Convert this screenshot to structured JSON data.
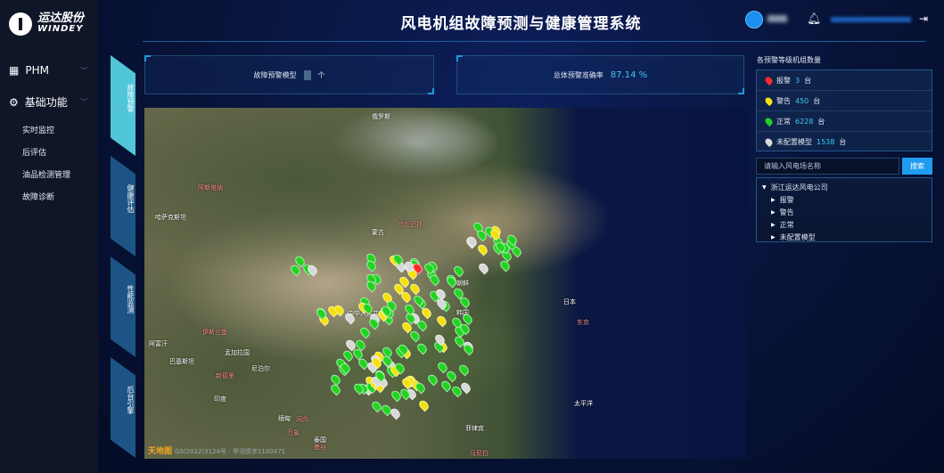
{
  "brand": {
    "name_cn": "运达股份",
    "name_en": "WINDEY"
  },
  "sidebar": {
    "menus": [
      {
        "label": "PHM",
        "icon": "grid-icon"
      },
      {
        "label": "基础功能",
        "icon": "gear-icon"
      }
    ],
    "items": [
      "实时监控",
      "后评估",
      "油品检测管理",
      "故障诊断"
    ]
  },
  "header": {
    "title": "风电机组故障预测与健康管理系统"
  },
  "tabs": [
    {
      "label": "故障预警",
      "active": true
    },
    {
      "label": "健康评估"
    },
    {
      "label": "性能监测"
    },
    {
      "label": "后台引擎"
    }
  ],
  "stats": {
    "model_label": "故障预警模型",
    "model_unit": "个",
    "accuracy_label": "总体预警准确率",
    "accuracy_value": "87.14 %"
  },
  "map": {
    "labels": [
      "俄罗斯",
      "阿斯塔纳",
      "哈萨克斯坦",
      "乌兰巴托",
      "蒙古",
      "中华人民共和国",
      "朝鲜",
      "韩国",
      "日本",
      "东京",
      "太平洋",
      "印度",
      "尼泊尔",
      "新德里",
      "孟加拉国",
      "缅甸",
      "泰国",
      "河内",
      "万象",
      "曼谷",
      "菲律宾",
      "马尼拉",
      "伊斯兰堡",
      "阿富汗",
      "巴基斯坦"
    ],
    "attribution_logo": "天地图",
    "attribution": "GS(2022)3124号 - 甲测资字1100471"
  },
  "right_panel": {
    "title": "各预警等级机组数量",
    "levels": [
      {
        "name": "报警",
        "count": "3",
        "unit": "台",
        "color": "#ff2b2b"
      },
      {
        "name": "警告",
        "count": "450",
        "unit": "台",
        "color": "#f5e10a"
      },
      {
        "name": "正常",
        "count": "6228",
        "unit": "台",
        "color": "#22d422"
      },
      {
        "name": "未配置模型",
        "count": "1538",
        "unit": "台",
        "color": "#d8d8d8"
      }
    ],
    "search_placeholder": "请输入风电场名称",
    "search_button": "搜索",
    "tree": {
      "root": "浙江运达风电公司",
      "children": [
        "报警",
        "警告",
        "正常",
        "未配置模型"
      ]
    }
  },
  "colors": {
    "accent": "#1f9cf0",
    "active_tab": "#50c6d8",
    "value": "#3fc7f0"
  }
}
